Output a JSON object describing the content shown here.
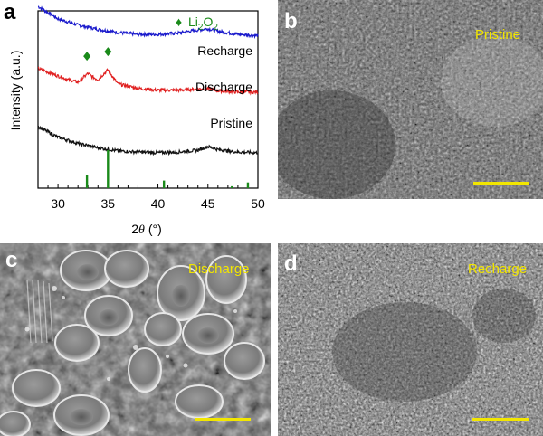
{
  "panels": {
    "a": {
      "letter": "a",
      "chart_data": {
        "type": "line",
        "xlabel_italic": "θ",
        "xlabel_prefix": "2",
        "xlabel_suffix": " (°)",
        "ylabel": "Intensity (a.u.)",
        "xlim": [
          28,
          50
        ],
        "xticks": [
          "30",
          "35",
          "40",
          "45",
          "50"
        ],
        "series": [
          {
            "name": "Recharge",
            "color": "#1a1acc",
            "offset": 0.78,
            "x": [
              28,
              30,
              32,
              34,
              36,
              38,
              40,
              42,
              44,
              45,
              46,
              48,
              50
            ],
            "y": [
              1.0,
              0.8,
              0.7,
              0.63,
              0.58,
              0.55,
              0.55,
              0.57,
              0.62,
              0.64,
              0.6,
              0.55,
              0.53
            ]
          },
          {
            "name": "Discharge",
            "color": "#e02020",
            "offset": 0.5,
            "x": [
              28,
              30,
              31,
              32,
              33,
              33.5,
              34,
              35,
              35.5,
              36,
              38,
              40,
              42,
              44,
              45,
              46,
              48,
              50
            ],
            "y": [
              0.8,
              0.68,
              0.62,
              0.58,
              0.72,
              0.66,
              0.62,
              0.78,
              0.66,
              0.55,
              0.48,
              0.45,
              0.45,
              0.47,
              0.48,
              0.44,
              0.42,
              0.42
            ]
          },
          {
            "name": "Pristine",
            "color": "#111111",
            "offset": 0.2,
            "x": [
              28,
              30,
              32,
              34,
              36,
              38,
              40,
              42,
              44,
              45,
              46,
              48,
              50
            ],
            "y": [
              0.72,
              0.55,
              0.45,
              0.38,
              0.33,
              0.31,
              0.3,
              0.31,
              0.34,
              0.4,
              0.35,
              0.31,
              0.3
            ]
          }
        ],
        "reference": {
          "name": "Li2O2",
          "label_main": "Li",
          "label_sub1": "2",
          "label_mid": "O",
          "label_sub2": "2",
          "marker": "♦",
          "color": "#1a8a1a",
          "sticks": [
            {
              "x": 32.9,
              "h": 0.35
            },
            {
              "x": 35.0,
              "h": 1.0
            },
            {
              "x": 40.6,
              "h": 0.2
            },
            {
              "x": 47.4,
              "h": 0.05
            },
            {
              "x": 49.0,
              "h": 0.15
            }
          ],
          "peak_markers": [
            {
              "x": 32.9,
              "y": 0.8
            },
            {
              "x": 35.0,
              "y": 0.86
            }
          ]
        }
      }
    },
    "b": {
      "letter": "b",
      "label": "Pristine"
    },
    "c": {
      "letter": "c",
      "label": "Discharge"
    },
    "d": {
      "letter": "d",
      "label": "Recharge"
    }
  }
}
